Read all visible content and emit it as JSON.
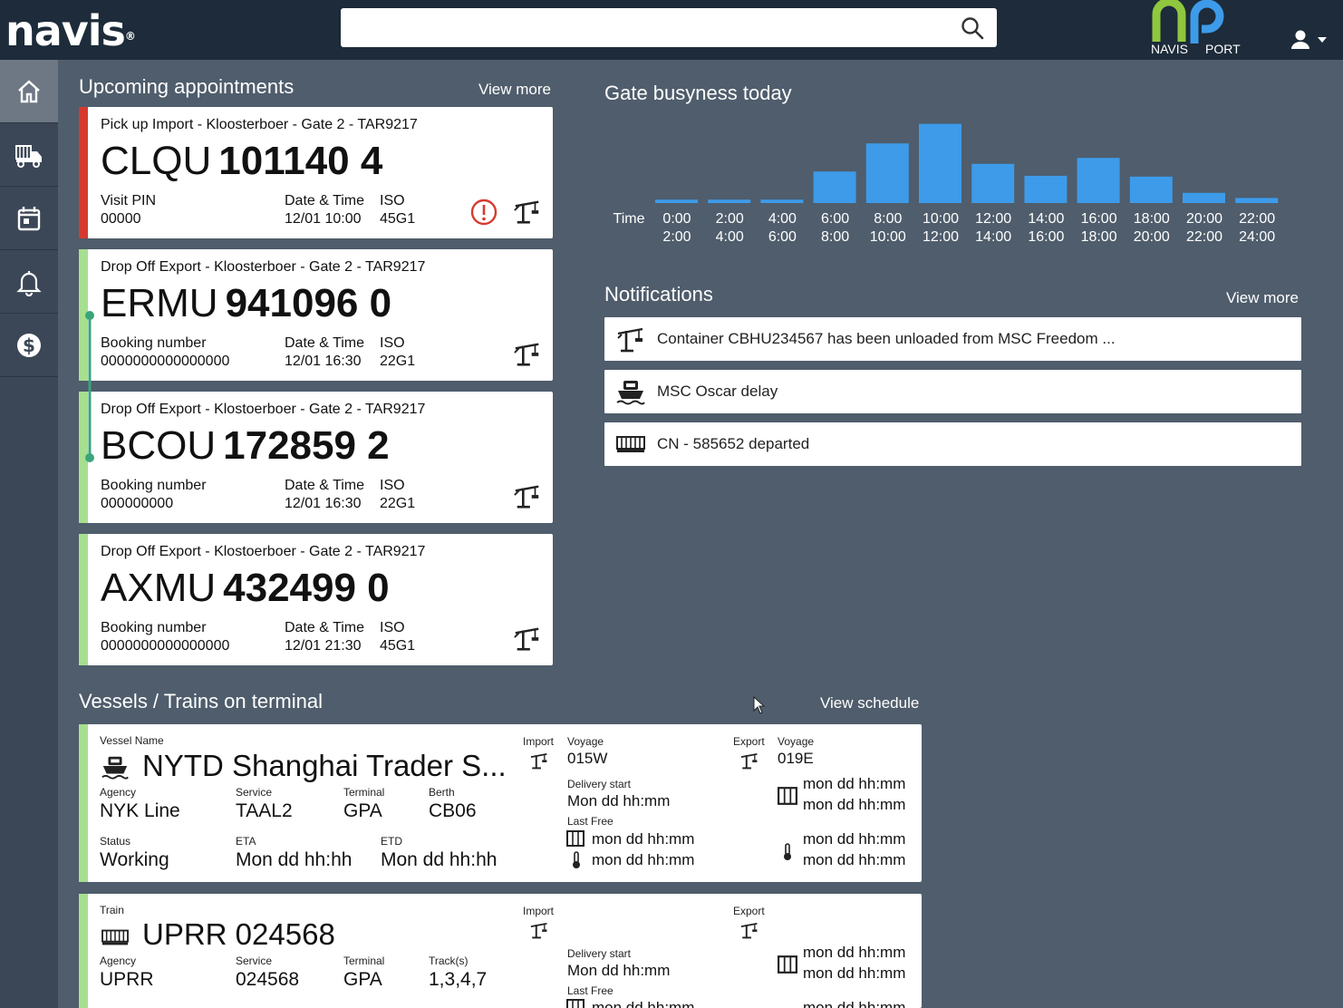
{
  "header": {
    "logo": "navis",
    "logo_mark": "®",
    "search": {
      "value": "",
      "placeholder": ""
    },
    "brand": {
      "left": "NAVIS",
      "right": "PORT"
    }
  },
  "nav": [
    {
      "name": "home-icon",
      "active": true
    },
    {
      "name": "truck-icon",
      "active": false
    },
    {
      "name": "calendar-icon",
      "active": false
    },
    {
      "name": "bell-icon",
      "active": false
    },
    {
      "name": "dollar-icon",
      "active": false
    }
  ],
  "appointments": {
    "title": "Upcoming appointments",
    "view_more": "View more",
    "items": [
      {
        "header": "Pick up Import - Kloosterboer - Gate 2 - TAR9217",
        "prefix": "CLQU",
        "number": "101140 4",
        "label1": "Visit PIN",
        "value1": "00000",
        "label2": "Date & Time",
        "value2": "12/01 10:00",
        "label3": "ISO",
        "value3": "45G1",
        "status_color": "#d63a2f",
        "alert": true
      },
      {
        "header": "Drop Off Export - Kloosterboer - Gate 2 - TAR9217",
        "prefix": "ERMU",
        "number": "941096 0",
        "label1": "Booking number",
        "value1": "0000000000000000",
        "label2": "Date & Time",
        "value2": "12/01 16:30",
        "label3": "ISO",
        "value3": "22G1",
        "status_color": "#a6df8f",
        "alert": false
      },
      {
        "header": "Drop Off Export - Klostoerboer - Gate 2 - TAR9217",
        "prefix": "BCOU",
        "number": "172859 2",
        "label1": "Booking number",
        "value1": "000000000",
        "label2": "Date & Time",
        "value2": "12/01 16:30",
        "label3": "ISO",
        "value3": "22G1",
        "status_color": "#a6df8f",
        "alert": false
      },
      {
        "header": "Drop Off Export - Klostoerboer - Gate 2 - TAR9217",
        "prefix": "AXMU",
        "number": "432499 0",
        "label1": "Booking number",
        "value1": "0000000000000000",
        "label2": "Date & Time",
        "value2": "12/01 21:30",
        "label3": "ISO",
        "value3": "45G1",
        "status_color": "#a6df8f",
        "alert": false
      }
    ]
  },
  "gate": {
    "title": "Gate busyness today",
    "time_label": "Time"
  },
  "chart_data": {
    "type": "bar",
    "title": "Gate busyness today",
    "xlabel": "Time",
    "ylabel": "",
    "categories": [
      [
        "0:00",
        "2:00"
      ],
      [
        "2:00",
        "4:00"
      ],
      [
        "4:00",
        "6:00"
      ],
      [
        "6:00",
        "8:00"
      ],
      [
        "8:00",
        "10:00"
      ],
      [
        "10:00",
        "12:00"
      ],
      [
        "12:00",
        "14:00"
      ],
      [
        "14:00",
        "16:00"
      ],
      [
        "16:00",
        "18:00"
      ],
      [
        "18:00",
        "20:00"
      ],
      [
        "20:00",
        "22:00"
      ],
      [
        "22:00",
        "24:00"
      ]
    ],
    "values": [
      4,
      4,
      4,
      37,
      70,
      93,
      46,
      32,
      53,
      31,
      12,
      6
    ],
    "ylim": [
      0,
      100
    ],
    "grid": false,
    "color": "#3d9be9"
  },
  "notifications": {
    "title": "Notifications",
    "view_more": "View more",
    "items": [
      {
        "icon": "crane-icon",
        "text": "Container CBHU234567 has been unloaded from MSC Freedom ..."
      },
      {
        "icon": "ship-icon",
        "text": "MSC Oscar delay"
      },
      {
        "icon": "train-icon",
        "text": "CN - 585652 departed"
      }
    ]
  },
  "vessels": {
    "title": "Vessels / Trains on terminal",
    "view_schedule": "View schedule",
    "vessel": {
      "name_label": "Vessel Name",
      "name": "NYTD Shanghai Trader S...",
      "agency_label": "Agency",
      "agency": "NYK Line",
      "service_label": "Service",
      "service": "TAAL2",
      "terminal_label": "Terminal",
      "terminal": "GPA",
      "berth_label": "Berth",
      "berth": "CB06",
      "status_label": "Status",
      "status": "Working",
      "eta_label": "ETA",
      "eta": "Mon dd hh:hh",
      "etd_label": "ETD",
      "etd": "Mon dd hh:hh",
      "import_label": "Import",
      "import_voyage_label": "Voyage",
      "import_voyage": "015W",
      "export_label": "Export",
      "export_voyage_label": "Voyage",
      "export_voyage": "019E",
      "delivery_label": "Delivery start",
      "delivery": "Mon dd hh:mm",
      "lastfree_label": "Last Free",
      "lastfree_dry": "mon dd hh:mm",
      "lastfree_reefer": "mon dd hh:mm",
      "export_dry_1": "mon dd hh:mm",
      "export_dry_2": "mon dd hh:mm",
      "export_reefer_1": "mon dd hh:mm",
      "export_reefer_2": "mon dd hh:mm"
    },
    "train": {
      "name_label": "Train",
      "name": "UPRR 024568",
      "agency_label": "Agency",
      "agency": "UPRR",
      "service_label": "Service",
      "service": "024568",
      "terminal_label": "Terminal",
      "terminal": "GPA",
      "tracks_label": "Track(s)",
      "tracks": "1,3,4,7",
      "import_label": "Import",
      "export_label": "Export",
      "delivery_label": "Delivery start",
      "delivery": "Mon dd hh:mm",
      "lastfree_label": "Last Free",
      "lastfree_dry": "mon dd hh:mm",
      "export_dry_1": "mon dd hh:mm",
      "export_dry_2": "mon dd hh:mm",
      "export_dry_3": "mon dd hh:mm"
    }
  }
}
